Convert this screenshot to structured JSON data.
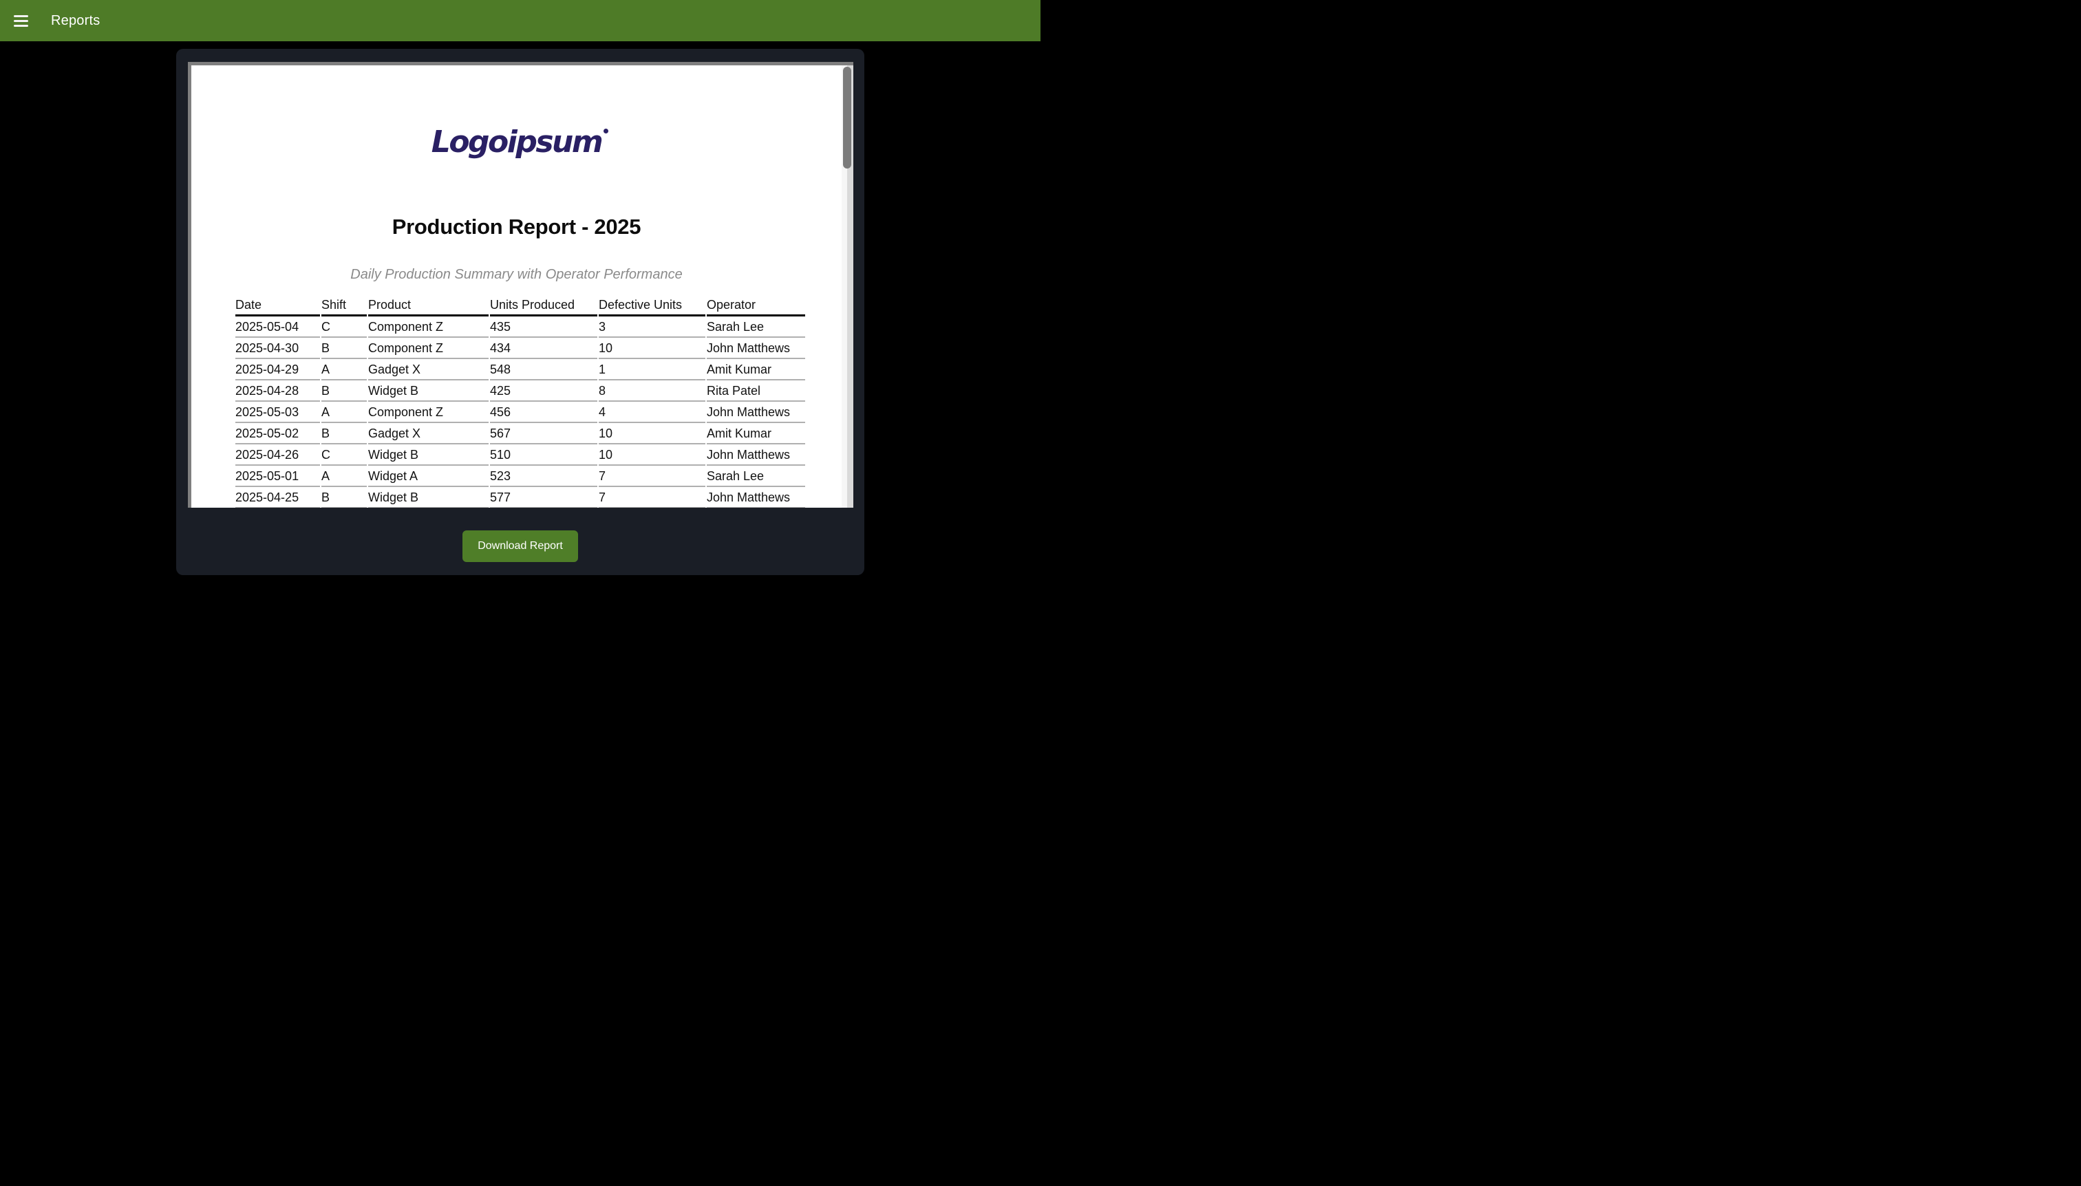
{
  "topbar": {
    "title": "Reports",
    "menu_icon": "hamburger-menu-icon",
    "background_color": "#4e7b27",
    "text_color": "#ffffff"
  },
  "page_background_color": "#000000",
  "modal": {
    "background_color": "#1a1e26",
    "download_button": {
      "label": "Download Report",
      "background_color": "#4f7e28",
      "text_color": "#ffffff"
    }
  },
  "document": {
    "logo": {
      "text": "Logoipsum",
      "color": "#2a2064"
    },
    "title": "Production Report - 2025",
    "subtitle": "Daily Production Summary with Operator Performance",
    "table": {
      "columns": [
        "Date",
        "Shift",
        "Product",
        "Units Produced",
        "Defective Units",
        "Operator"
      ],
      "rows": [
        [
          "2025-05-04",
          "C",
          "Component Z",
          "435",
          "3",
          "Sarah Lee"
        ],
        [
          "2025-04-30",
          "B",
          "Component Z",
          "434",
          "10",
          "John Matthews"
        ],
        [
          "2025-04-29",
          "A",
          "Gadget X",
          "548",
          "1",
          "Amit Kumar"
        ],
        [
          "2025-04-28",
          "B",
          "Widget B",
          "425",
          "8",
          "Rita Patel"
        ],
        [
          "2025-05-03",
          "A",
          "Component Z",
          "456",
          "4",
          "John Matthews"
        ],
        [
          "2025-05-02",
          "B",
          "Gadget X",
          "567",
          "10",
          "Amit Kumar"
        ],
        [
          "2025-04-26",
          "C",
          "Widget B",
          "510",
          "10",
          "John Matthews"
        ],
        [
          "2025-05-01",
          "A",
          "Widget A",
          "523",
          "7",
          "Sarah Lee"
        ],
        [
          "2025-04-25",
          "B",
          "Widget B",
          "577",
          "7",
          "John Matthews"
        ]
      ]
    }
  },
  "scrollbar": {
    "thumb_color": "#7b7b7b",
    "track_color": "#ececec"
  }
}
